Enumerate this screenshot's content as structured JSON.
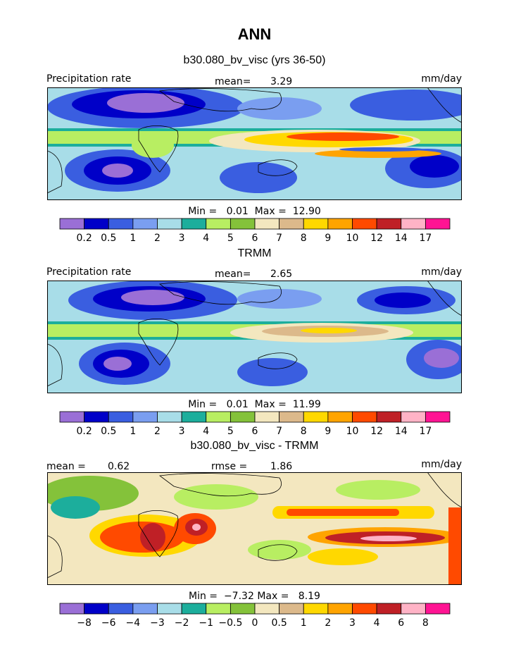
{
  "title": "ANN",
  "subtitle": "b30.080_bv_visc (yrs 36-50)",
  "panels": [
    {
      "title": "",
      "left_label": "Precipitation rate",
      "center_label": "mean=",
      "center_value": "3.29",
      "right_label": "mm/day",
      "min_label": "Min =",
      "min_value": "0.01",
      "max_label": "Max =",
      "max_value": "12.90",
      "colorbar": {
        "labels": [
          "0.2",
          "0.5",
          "1",
          "2",
          "3",
          "4",
          "5",
          "6",
          "7",
          "8",
          "9",
          "10",
          "12",
          "14",
          "17"
        ],
        "colors": [
          "#9a6fd6",
          "#0000c8",
          "#3a5ee0",
          "#7a9ef0",
          "#a8dde8",
          "#1cae9c",
          "#b8ee62",
          "#84c23a",
          "#f3e7bf",
          "#dcb98b",
          "#ffd800",
          "#ffa400",
          "#ff4a00",
          "#bf2026",
          "#ffb3c6",
          "#ff1493"
        ]
      }
    },
    {
      "title": "TRMM",
      "left_label": "Precipitation rate",
      "center_label": "mean=",
      "center_value": "2.65",
      "right_label": "mm/day",
      "min_label": "Min =",
      "min_value": "0.01",
      "max_label": "Max =",
      "max_value": "11.99",
      "colorbar": {
        "labels": [
          "0.2",
          "0.5",
          "1",
          "2",
          "3",
          "4",
          "5",
          "6",
          "7",
          "8",
          "9",
          "10",
          "12",
          "14",
          "17"
        ],
        "colors": [
          "#9a6fd6",
          "#0000c8",
          "#3a5ee0",
          "#7a9ef0",
          "#a8dde8",
          "#1cae9c",
          "#b8ee62",
          "#84c23a",
          "#f3e7bf",
          "#dcb98b",
          "#ffd800",
          "#ffa400",
          "#ff4a00",
          "#bf2026",
          "#ffb3c6",
          "#ff1493"
        ]
      }
    },
    {
      "title": "b30.080_bv_visc - TRMM",
      "left_label": "mean =",
      "left_value": "0.62",
      "center_label": "rmse =",
      "center_value": "1.86",
      "right_label": "mm/day",
      "min_label": "Min =",
      "min_value": "−7.32",
      "max_label": "Max =",
      "max_value": "8.19",
      "colorbar": {
        "labels": [
          "−8",
          "−6",
          "−4",
          "−3",
          "−2",
          "−1",
          "−0.5",
          "0",
          "0.5",
          "1",
          "2",
          "3",
          "4",
          "6",
          "8"
        ],
        "colors": [
          "#9a6fd6",
          "#0000c8",
          "#3a5ee0",
          "#7a9ef0",
          "#a8dde8",
          "#1cae9c",
          "#b8ee62",
          "#84c23a",
          "#f3e7bf",
          "#dcb98b",
          "#ffd800",
          "#ffa400",
          "#ff4a00",
          "#bf2026",
          "#ffb3c6",
          "#ff1493"
        ]
      }
    }
  ]
}
